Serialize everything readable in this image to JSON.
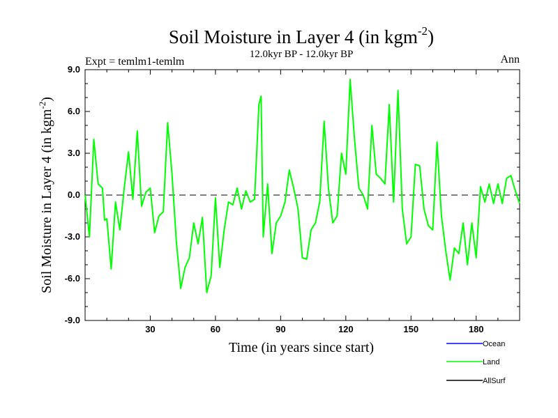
{
  "chart_data": {
    "type": "line",
    "title": "Soil Moisture in Layer 4 (in kgm",
    "title_sup": "-2",
    "title_close": ")",
    "subtitle": "12.0kyr BP - 12.0kyr BP",
    "left_label": "Expt = temlm1-temlm",
    "right_label": "Ann",
    "xlabel": "Time (in years since start)",
    "ylabel": "Soil Moisture in Layer 4 (in kgm",
    "ylabel_sup": "-2",
    "ylabel_close": ")",
    "xlim": [
      0,
      200
    ],
    "ylim": [
      -9,
      9
    ],
    "xticks": [
      30,
      60,
      90,
      120,
      150,
      180
    ],
    "xtick_labels": [
      "30",
      "60",
      "90",
      "120",
      "150",
      "180"
    ],
    "yticks": [
      -9,
      -6,
      -3,
      0,
      3,
      6,
      9
    ],
    "ytick_labels": [
      "-9.0",
      "-6.0",
      "-3.0",
      "0.0",
      "3.0",
      "6.0",
      "9.0"
    ],
    "reference_line": 0,
    "colors": {
      "ocean": "#0000ff",
      "land": "#00ff00",
      "allsurf": "#000000",
      "axis": "#000000"
    },
    "legend": [
      {
        "name": "Ocean",
        "color": "#0000ff"
      },
      {
        "name": "Land",
        "color": "#00ff00"
      },
      {
        "name": "AllSurf",
        "color": "#000000"
      }
    ],
    "series": [
      {
        "name": "Land",
        "color": "#00ff00",
        "x": [
          0,
          2,
          4,
          6,
          8,
          9,
          10,
          12,
          14,
          16,
          18,
          20,
          22,
          24,
          26,
          28,
          30,
          32,
          34,
          36,
          38,
          40,
          42,
          44,
          46,
          48,
          50,
          52,
          54,
          56,
          58,
          60,
          62,
          64,
          66,
          68,
          70,
          72,
          74,
          76,
          78,
          80,
          81,
          82,
          84,
          86,
          88,
          90,
          92,
          94,
          96,
          98,
          100,
          102,
          104,
          106,
          108,
          110,
          112,
          114,
          116,
          118,
          120,
          122,
          124,
          126,
          128,
          130,
          132,
          134,
          136,
          138,
          140,
          142,
          144,
          146,
          148,
          150,
          152,
          154,
          156,
          158,
          160,
          162,
          164,
          166,
          168,
          170,
          172,
          174,
          176,
          178,
          180,
          182,
          184,
          186,
          188,
          190,
          192,
          194,
          196,
          198,
          200
        ],
        "values": [
          0.0,
          -3.0,
          4.0,
          0.8,
          0.5,
          -1.8,
          -1.7,
          -5.3,
          -0.5,
          -2.5,
          0.5,
          3.1,
          -0.3,
          4.6,
          -0.8,
          0.2,
          0.5,
          -2.7,
          -1.5,
          -1.2,
          5.2,
          1.5,
          -3.3,
          -6.7,
          -5.2,
          -4.5,
          -2.0,
          -3.5,
          -1.6,
          -7.0,
          -5.8,
          -0.2,
          -5.2,
          -2.5,
          -0.5,
          -0.7,
          0.5,
          -1.0,
          0.3,
          -0.5,
          -0.3,
          6.5,
          7.1,
          -3.0,
          0.8,
          -4.2,
          -2.0,
          -1.5,
          -0.5,
          1.8,
          0.5,
          -1.0,
          -4.5,
          -4.6,
          -2.5,
          -2.0,
          -0.5,
          5.3,
          0.5,
          -2.0,
          -1.5,
          3.0,
          1.5,
          8.3,
          4.0,
          0.5,
          0.0,
          -1.0,
          5.0,
          1.5,
          1.2,
          0.8,
          6.5,
          -0.5,
          7.5,
          -1.0,
          -3.5,
          -3.0,
          2.2,
          2.1,
          -1.0,
          -2.2,
          -2.5,
          3.8,
          -1.5,
          -4.0,
          -6.1,
          -3.8,
          -4.2,
          -2.0,
          -5.0,
          -2.0,
          -4.5,
          0.6,
          -0.5,
          0.8,
          -0.6,
          0.8,
          -0.6,
          1.2,
          1.4,
          0.3,
          -0.6
        ]
      }
    ]
  }
}
